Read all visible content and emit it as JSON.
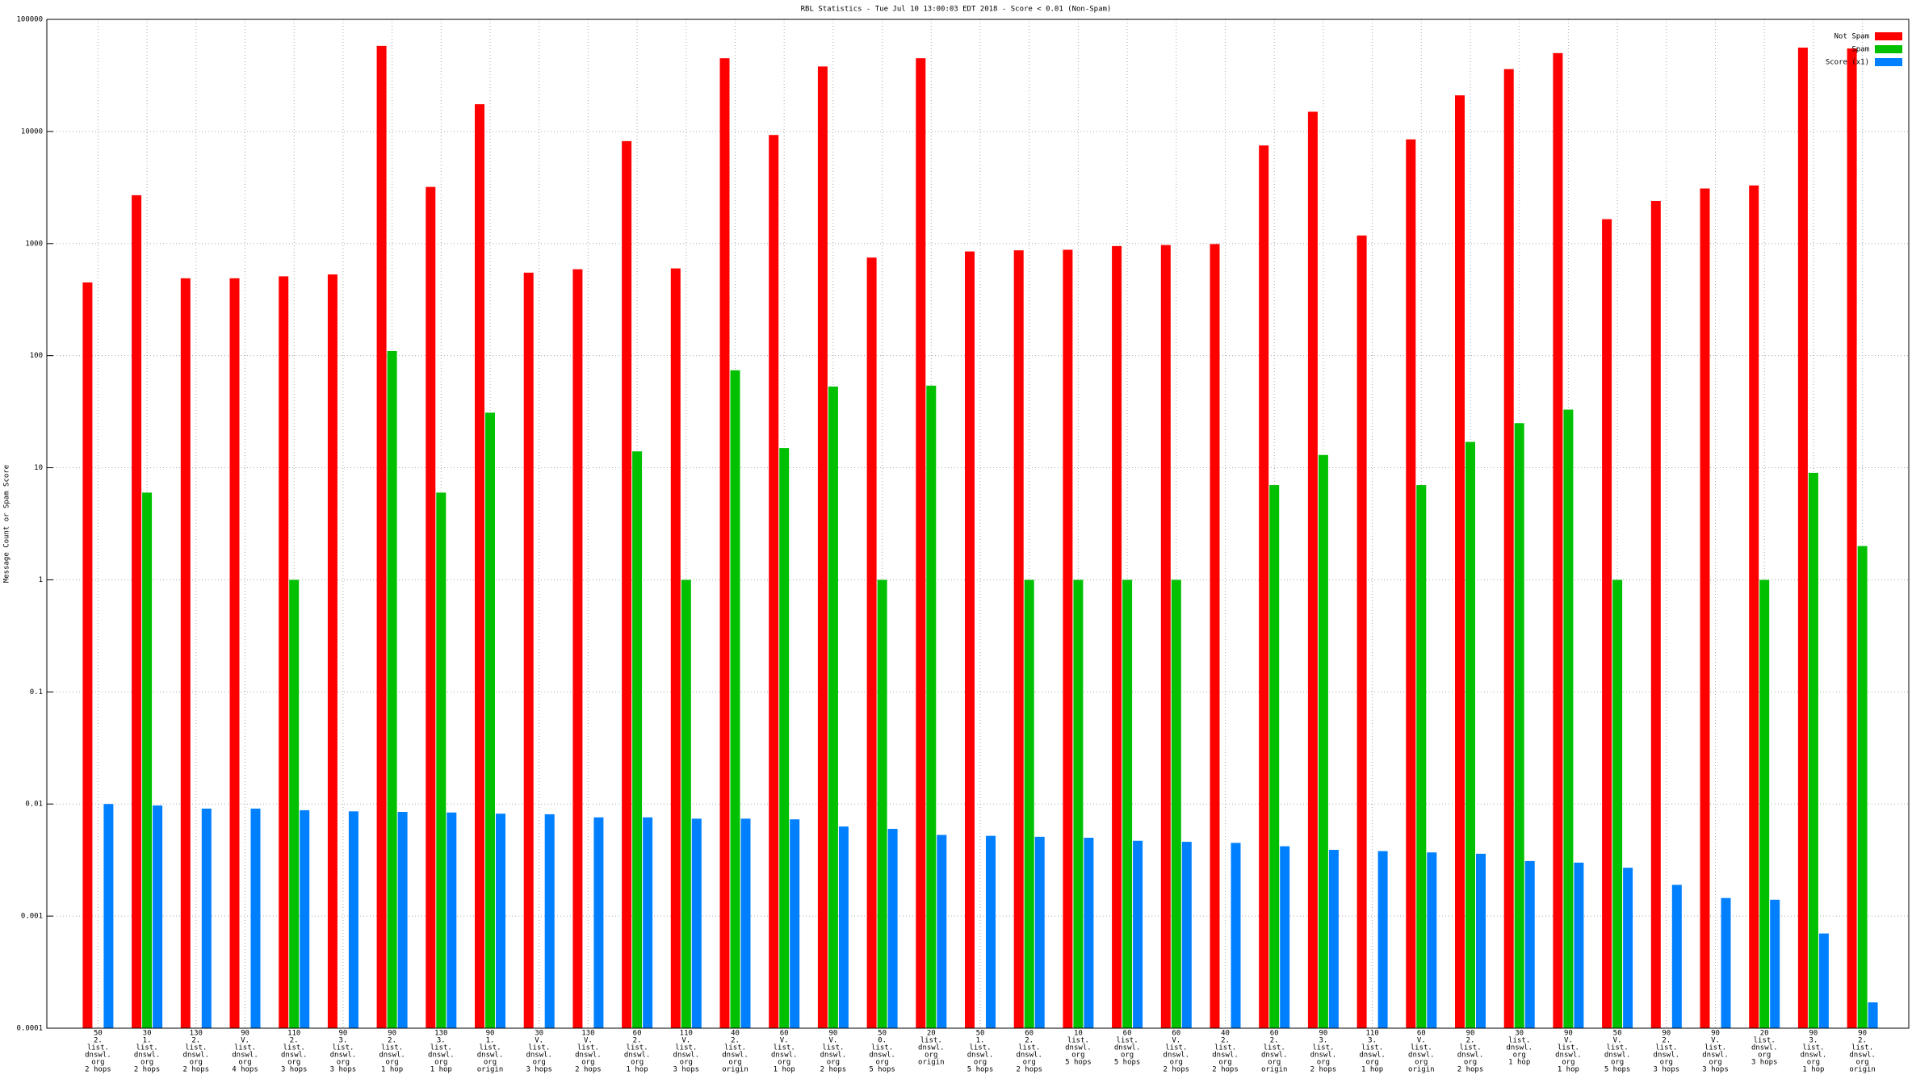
{
  "chart_data": {
    "type": "bar",
    "title": "RBL Statistics - Tue Jul 10 13:00:03 EDT 2018 - Score < 0.01 (Non-Spam)",
    "y_label": "Message Count or Spam Score",
    "log_scale": true,
    "grid": true,
    "legend": "top-right",
    "ylim": [
      0.0001,
      100000
    ],
    "yticks": [
      0.0001,
      0.001,
      0.01,
      0.1,
      1,
      10,
      100,
      1000,
      10000,
      100000
    ],
    "categories": [
      [
        "50",
        "2.",
        "list.",
        "dnswl.",
        "org",
        "2 hops"
      ],
      [
        "30",
        "1.",
        "list.",
        "dnswl.",
        "org",
        "2 hops"
      ],
      [
        "130",
        "2.",
        "list.",
        "dnswl.",
        "org",
        "2 hops"
      ],
      [
        "90",
        "V.",
        "list.",
        "dnswl.",
        "org",
        "4 hops"
      ],
      [
        "110",
        "2.",
        "list.",
        "dnswl.",
        "org",
        "3 hops"
      ],
      [
        "90",
        "3.",
        "list.",
        "dnswl.",
        "org",
        "3 hops"
      ],
      [
        "90",
        "2.",
        "list.",
        "dnswl.",
        "org",
        "1 hop"
      ],
      [
        "130",
        "3.",
        "list.",
        "dnswl.",
        "org",
        "1 hop"
      ],
      [
        "90",
        "1.",
        "list.",
        "dnswl.",
        "org",
        "origin"
      ],
      [
        "30",
        "V.",
        "list.",
        "dnswl.",
        "org",
        "3 hops"
      ],
      [
        "130",
        "V.",
        "list.",
        "dnswl.",
        "org",
        "2 hops"
      ],
      [
        "60",
        "2.",
        "list.",
        "dnswl.",
        "org",
        "1 hop"
      ],
      [
        "110",
        "V.",
        "list.",
        "dnswl.",
        "org",
        "3 hops"
      ],
      [
        "40",
        "2.",
        "list.",
        "dnswl.",
        "org",
        "origin"
      ],
      [
        "60",
        "V.",
        "list.",
        "dnswl.",
        "org",
        "1 hop"
      ],
      [
        "90",
        "V.",
        "list.",
        "dnswl.",
        "org",
        "2 hops"
      ],
      [
        "50",
        "0.",
        "list.",
        "dnswl.",
        "org",
        "5 hops"
      ],
      [
        "20",
        "list.",
        "dnswl.",
        "org",
        "origin"
      ],
      [
        "50",
        "1.",
        "list.",
        "dnswl.",
        "org",
        "5 hops"
      ],
      [
        "60",
        "2.",
        "list.",
        "dnswl.",
        "org",
        "2 hops"
      ],
      [
        "10",
        "list.",
        "dnswl.",
        "org",
        "5 hops"
      ],
      [
        "60",
        "list.",
        "dnswl.",
        "org",
        "5 hops"
      ],
      [
        "60",
        "V.",
        "list.",
        "dnswl.",
        "org",
        "2 hops"
      ],
      [
        "40",
        "2.",
        "list.",
        "dnswl.",
        "org",
        "2 hops"
      ],
      [
        "60",
        "2.",
        "list.",
        "dnswl.",
        "org",
        "origin"
      ],
      [
        "90",
        "3.",
        "list.",
        "dnswl.",
        "org",
        "2 hops"
      ],
      [
        "110",
        "3.",
        "list.",
        "dnswl.",
        "org",
        "1 hop"
      ],
      [
        "60",
        "V.",
        "list.",
        "dnswl.",
        "org",
        "origin"
      ],
      [
        "90",
        "2.",
        "list.",
        "dnswl.",
        "org",
        "2 hops"
      ],
      [
        "30",
        "list.",
        "dnswl.",
        "org",
        "1 hop"
      ],
      [
        "90",
        "V.",
        "list.",
        "dnswl.",
        "org",
        "1 hop"
      ],
      [
        "50",
        "V.",
        "list.",
        "dnswl.",
        "org",
        "5 hops"
      ],
      [
        "90",
        "2.",
        "list.",
        "dnswl.",
        "org",
        "3 hops"
      ],
      [
        "90",
        "V.",
        "list.",
        "dnswl.",
        "org",
        "3 hops"
      ],
      [
        "20",
        "list.",
        "dnswl.",
        "org",
        "3 hops"
      ],
      [
        "90",
        "3.",
        "list.",
        "dnswl.",
        "org",
        "1 hop"
      ],
      [
        "90",
        "2.",
        "list.",
        "dnswl.",
        "org",
        "origin"
      ]
    ],
    "series": [
      {
        "name": "Not Spam",
        "color": "#ff0000",
        "values": [
          450,
          2700,
          490,
          490,
          510,
          530,
          58000,
          3200,
          17500,
          550,
          590,
          8200,
          600,
          45000,
          9300,
          38000,
          750,
          45000,
          850,
          870,
          880,
          950,
          970,
          990,
          7500,
          15000,
          1180,
          8500,
          21000,
          36000,
          50000,
          1650,
          2400,
          3100,
          3300,
          56000,
          55000
        ]
      },
      {
        "name": "Spam",
        "color": "#00c000",
        "values": [
          null,
          6,
          null,
          null,
          1,
          null,
          110,
          6,
          31,
          null,
          null,
          14,
          1,
          74,
          15,
          53,
          1,
          54,
          null,
          1,
          1,
          1,
          1,
          null,
          7,
          13,
          null,
          7,
          17,
          25,
          33,
          1,
          null,
          null,
          1,
          9,
          2
        ]
      },
      {
        "name": "Score (x1)",
        "color": "#0080ff",
        "values": [
          0.01,
          0.0097,
          0.0091,
          0.0091,
          0.0088,
          0.0086,
          0.0085,
          0.0084,
          0.0082,
          0.0081,
          0.0076,
          0.0076,
          0.0074,
          0.0074,
          0.0073,
          0.0063,
          0.006,
          0.0053,
          0.0052,
          0.0051,
          0.005,
          0.0047,
          0.0046,
          0.0045,
          0.0042,
          0.0039,
          0.0038,
          0.0037,
          0.0036,
          0.0031,
          0.003,
          0.0027,
          0.0019,
          0.00145,
          0.0014,
          0.0007,
          0.00017
        ]
      }
    ]
  }
}
